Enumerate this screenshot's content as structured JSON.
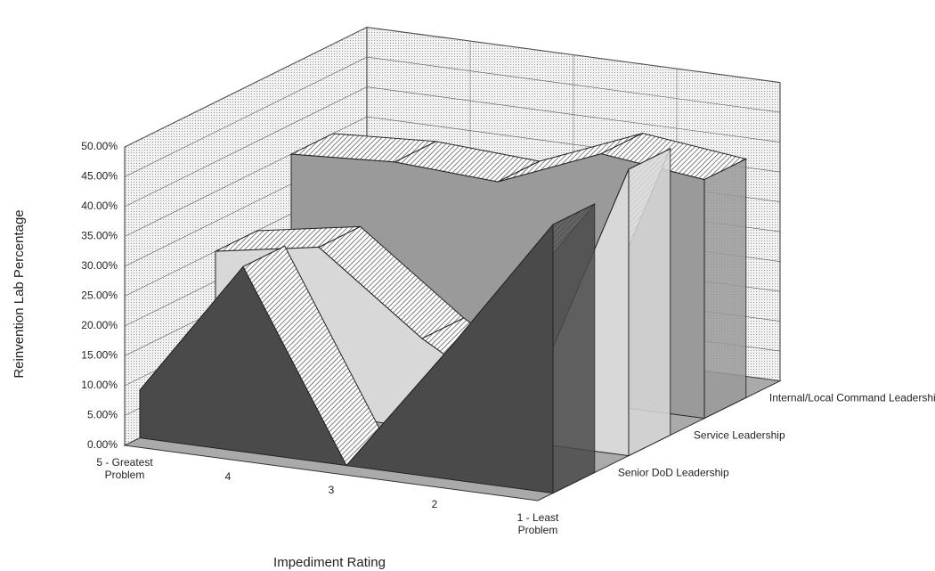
{
  "chart_data": {
    "type": "area3d",
    "y_axis_label": "Reinvention Lab Percentage",
    "x_axis_label": "Impediment Rating",
    "categories": [
      "5 - Greatest Problem",
      "4",
      "3",
      "2",
      "1 - Least Problem"
    ],
    "series": [
      {
        "name": "Senior DoD Leadership",
        "color": "#4a4a4a",
        "values": [
          8,
          31,
          0,
          22,
          45
        ]
      },
      {
        "name": "Service Leadership",
        "color": "#d8d8d8",
        "values": [
          25,
          28,
          15,
          5,
          48
        ]
      },
      {
        "name": "Internal/Local Command Leadership",
        "color": "#9a9a9a",
        "values": [
          35,
          36,
          35,
          42,
          40
        ]
      }
    ],
    "ylim": [
      0,
      50
    ],
    "yticks": [
      {
        "value": 0,
        "label": "0.00%"
      },
      {
        "value": 5,
        "label": "5.00%"
      },
      {
        "value": 10,
        "label": "10.00%"
      },
      {
        "value": 15,
        "label": "15.00%"
      },
      {
        "value": 20,
        "label": "20.00%"
      },
      {
        "value": 25,
        "label": "25.00%"
      },
      {
        "value": 30,
        "label": "30.00%"
      },
      {
        "value": 35,
        "label": "35.00%"
      },
      {
        "value": 40,
        "label": "40.00%"
      },
      {
        "value": 45,
        "label": "45.00%"
      },
      {
        "value": 50,
        "label": "50.00%"
      }
    ],
    "grid": true
  }
}
